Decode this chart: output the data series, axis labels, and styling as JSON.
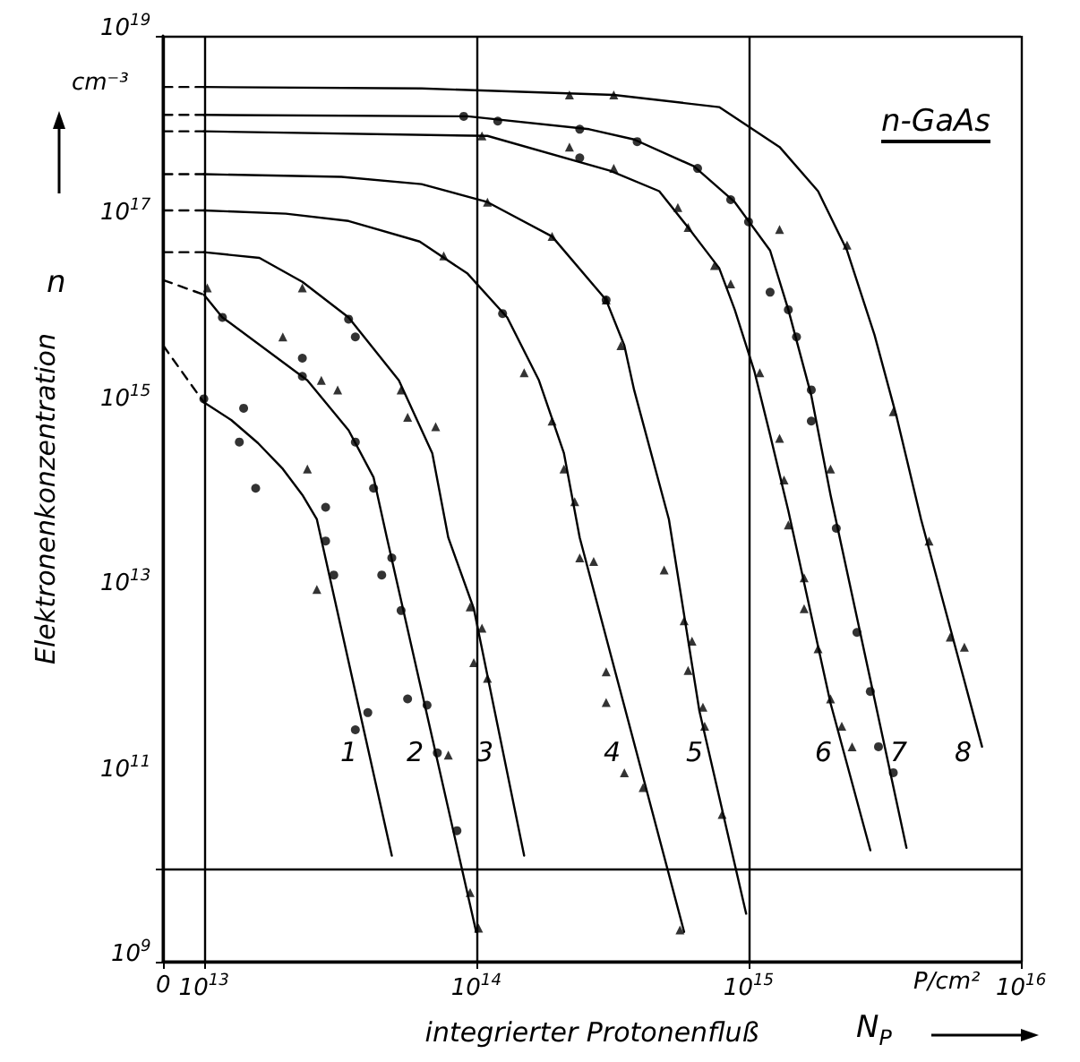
{
  "chart_data": {
    "type": "line",
    "xlabel": "integrierter Protonenfluß",
    "ylabel": "Elektronenkonzentration",
    "log": "xy",
    "grid": true,
    "marker": "none",
    "xlim": [
      0,
      1e+16
    ],
    "ylim": [
      1000000000.0,
      1e+19
    ],
    "xticks": [
      {
        "value": 0,
        "label": "0"
      },
      {
        "value": 10000000000000.0,
        "label": "10$^{13}$"
      },
      {
        "value": 100000000000000.0,
        "label": "10$^{14}$"
      },
      {
        "value": 1000000000000000.0,
        "label": "10$^{15}$"
      },
      {
        "value": 1e+16,
        "label": "10$^{16}$"
      }
    ],
    "yticks": [
      {
        "value": 1000000000.0,
        "label": "10$^{9}$"
      },
      {
        "value": 100000000000.0,
        "label": "10$^{11}$"
      },
      {
        "value": 10000000000000.0,
        "label": "10$^{13}$"
      },
      {
        "value": 1000000000000000.0,
        "label": "10$^{15}$"
      },
      {
        "value": 1e+17,
        "label": "10$^{17}$"
      },
      {
        "value": 1e+19,
        "label": "10$^{19}$"
      }
    ],
    "annotations": [
      "cm⁻³",
      "n-GaAs",
      "P/cm²",
      "n",
      "N$_{P}$",
      "1",
      "2",
      "3",
      "4",
      "5",
      "6",
      "7",
      "8"
    ],
    "series": [
      {
        "type": "line",
        "color": "#000000",
        "x": [
          10000000000000.0,
          12600000000000.0,
          15800000000000.0,
          19500000000000.0,
          23000000000000.0,
          26000000000000.0,
          49000000000000.0
        ],
        "values": [
          1100000000000000.0,
          710000000000000.0,
          400000000000000.0,
          210000000000000.0,
          110000000000000.0,
          60000000000000.0,
          14000000000.0
        ]
      },
      {
        "type": "line",
        "color": "#000000",
        "x": [
          10000000000000.0,
          11700000000000.0,
          24000000000000.0,
          34000000000000.0,
          42000000000000.0,
          47000000000000.0,
          100000000000000.0
        ],
        "values": [
          1.6e+16,
          9100000000000000.0,
          1900000000000000.0,
          550000000000000.0,
          170000000000000.0,
          38000000000000.0,
          2100000000.0
        ]
      },
      {
        "type": "line",
        "color": "#000000",
        "x": [
          10000000000000.0,
          16000000000000.0,
          23000000000000.0,
          34000000000000.0,
          52000000000000.0,
          69000000000000.0,
          79000000000000.0,
          98000000000000.0,
          150000000000000.0
        ],
        "values": [
          4.6e+16,
          4e+16,
          2.2e+16,
          9100000000000000.0,
          1900000000000000.0,
          310000000000000.0,
          38000000000000.0,
          6500000000000.0,
          14000000000.0
        ]
      },
      {
        "type": "line",
        "color": "#000000",
        "x": [
          10000000000000.0,
          20000000000000.0,
          34000000000000.0,
          62000000000000.0,
          93000000000000.0,
          130000000000000.0,
          170000000000000.0,
          210000000000000.0,
          240000000000000.0,
          580000000000000.0
        ],
        "values": [
          1.3e+17,
          1.2e+17,
          1e+17,
          6e+16,
          2.7e+16,
          9100000000000000.0,
          1900000000000000.0,
          310000000000000.0,
          38000000000000.0,
          2100000000.0
        ]
      },
      {
        "type": "line",
        "color": "#000000",
        "x": [
          10000000000000.0,
          32000000000000.0,
          63000000000000.0,
          110000000000000.0,
          190000000000000.0,
          300000000000000.0,
          350000000000000.0,
          380000000000000.0,
          510000000000000.0,
          660000000000000.0,
          980000000000000.0
        ],
        "values": [
          3.2e+17,
          3e+17,
          2.5e+17,
          1.6e+17,
          6.8e+16,
          1.4e+16,
          4500000000000000.0,
          1500000000000000.0,
          60000000000000.0,
          510000000000.0,
          3300000000.0
        ]
      },
      {
        "type": "line",
        "color": "#000000",
        "x": [
          10000000000000.0,
          110000000000000.0,
          310000000000000.0,
          470000000000000.0,
          600000000000000.0,
          780000000000000.0,
          890000000000000.0,
          1050000000000000.0,
          1200000000000000.0,
          1400000000000000.0,
          2000000000000000.0,
          2800000000000000.0
        ],
        "values": [
          9.3e+17,
          8.3e+17,
          3.5e+17,
          2.1e+17,
          8.5e+16,
          3.1e+16,
          1.1e+16,
          2400000000000000.0,
          490000000000000.0,
          74000000000000.0,
          620000000000.0,
          16000000000.0
        ]
      },
      {
        "type": "line",
        "color": "#000000",
        "x": [
          10000000000000.0,
          93000000000000.0,
          260000000000000.0,
          380000000000000.0,
          630000000000000.0,
          890000000000000.0,
          1200000000000000.0,
          1400000000000000.0,
          1700000000000000.0,
          2000000000000000.0,
          2900000000000000.0,
          3800000000000000.0
        ],
        "values": [
          1.4e+18,
          1.35e+18,
          9.8e+17,
          7.6e+17,
          3.9e+17,
          1.6e+17,
          4.8e+16,
          1.1e+16,
          1300000000000000.0,
          110000000000000.0,
          690000000000.0,
          17000000000.0
        ]
      },
      {
        "type": "line",
        "color": "#000000",
        "x": [
          10000000000000.0,
          63000000000000.0,
          320000000000000.0,
          780000000000000.0,
          1300000000000000.0,
          1800000000000000.0,
          2300000000000000.0,
          2900000000000000.0,
          3500000000000000.0,
          4300000000000000.0,
          7200000000000000.0
        ],
        "values": [
          2.8e+18,
          2.7e+18,
          2.3e+18,
          1.7e+18,
          6.3e+17,
          2.1e+17,
          4.8e+16,
          5900000000000000.0,
          760000000000000.0,
          60000000000000.0,
          210000000000.0
        ]
      },
      {
        "type": "line",
        "line_style": "dashed",
        "color": "#000000",
        "x": [
          7100000000000.0,
          10000000000000.0
        ],
        "values": [
          4500000000000000.0,
          1100000000000000.0
        ]
      },
      {
        "type": "line",
        "line_style": "dashed",
        "color": "#000000",
        "x": [
          7100000000000.0,
          10000000000000.0
        ],
        "values": [
          2.3e+16,
          1.6e+16
        ]
      },
      {
        "type": "line",
        "line_style": "dashed",
        "color": "#000000",
        "x": [
          7100000000000.0,
          10000000000000.0
        ],
        "values": [
          4.6e+16,
          4.6e+16
        ]
      },
      {
        "type": "line",
        "line_style": "dashed",
        "color": "#000000",
        "x": [
          7100000000000.0,
          10000000000000.0
        ],
        "values": [
          1.3e+17,
          1.3e+17
        ]
      },
      {
        "type": "line",
        "line_style": "dashed",
        "color": "#000000",
        "x": [
          7100000000000.0,
          10000000000000.0
        ],
        "values": [
          3.2e+17,
          3.2e+17
        ]
      },
      {
        "type": "line",
        "line_style": "dashed",
        "color": "#000000",
        "x": [
          7100000000000.0,
          10000000000000.0
        ],
        "values": [
          9.3e+17,
          9.3e+17
        ]
      },
      {
        "type": "line",
        "line_style": "dashed",
        "color": "#000000",
        "x": [
          7100000000000.0,
          10000000000000.0
        ],
        "values": [
          1.4e+18,
          1.4e+18
        ]
      },
      {
        "type": "line",
        "line_style": "dashed",
        "color": "#000000",
        "x": [
          7100000000000.0,
          10000000000000.0
        ],
        "values": [
          2.8e+18,
          2.8e+18
        ]
      },
      {
        "type": "scatter",
        "marker": "circle",
        "color": "#000000",
        "x": [
          10000000000000.0,
          11700000000000.0,
          14000000000000.0,
          13500000000000.0,
          15500000000000.0,
          23000000000000.0,
          23000000000000.0,
          36000000000000.0,
          36000000000000.0,
          42000000000000.0,
          28000000000000.0,
          28000000000000.0,
          30000000000000.0,
          36000000000000.0,
          40000000000000.0,
          49000000000000.0,
          45000000000000.0,
          53000000000000.0,
          56000000000000.0,
          66000000000000.0,
          72000000000000.0,
          85000000000000.0,
          34000000000000.0,
          125000000000000.0,
          90000000000000.0,
          120000000000000.0,
          240000000000000.0,
          240000000000000.0,
          390000000000000.0,
          650000000000000.0,
          860000000000000.0,
          1000000000000000.0,
          1200000000000000.0,
          1400000000000000.0,
          1500000000000000.0,
          1700000000000000.0,
          1700000000000000.0,
          2100000000000000.0,
          2500000000000000.0,
          2800000000000000.0,
          3400000000000000.0,
          3000000000000000.0,
          300000000000000.0
        ],
        "values": [
          1200000000000000.0,
          9100000000000000.0,
          950000000000000.0,
          410000000000000.0,
          130000000000000.0,
          3300000000000000.0,
          2100000000000000.0,
          5600000000000000.0,
          410000000000000.0,
          130000000000000.0,
          81000000000000.0,
          35000000000000.0,
          15000000000000.0,
          320000000000.0,
          490000000000.0,
          23000000000000.0,
          15000000000000.0,
          6200000000000.0,
          690000000000.0,
          590000000000.0,
          180000000000.0,
          26000000000.0,
          8700000000000000.0,
          1e+16,
          1.35e+18,
          1.2e+18,
          9.8e+17,
          4.8e+17,
          7.2e+17,
          3.7e+17,
          1.7e+17,
          9.8e+16,
          1.7e+16,
          1.1e+16,
          5600000000000000.0,
          1500000000000000.0,
          690000000000000.0,
          48000000000000.0,
          3600000000000.0,
          830000000000.0,
          110000000000.0,
          210000000000.0,
          1.4e+16
        ]
      },
      {
        "type": "scatter",
        "marker": "triangle",
        "color": "#000000",
        "x": [
          10300000000000.0,
          19500000000000.0,
          24000000000000.0,
          31000000000000.0,
          27000000000000.0,
          53000000000000.0,
          56000000000000.0,
          71000000000000.0,
          23000000000000.0,
          76000000000000.0,
          110000000000000.0,
          190000000000000.0,
          105000000000000.0,
          320000000000000.0,
          300000000000000.0,
          340000000000000.0,
          150000000000000.0,
          190000000000000.0,
          210000000000000.0,
          230000000000000.0,
          220000000000000.0,
          220000000000000.0,
          320000000000000.0,
          550000000000000.0,
          600000000000000.0,
          750000000000000.0,
          860000000000000.0,
          1100000000000000.0,
          1300000000000000.0,
          1300000000000000.0,
          1350000000000000.0,
          2300000000000000.0,
          2000000000000000.0,
          3400000000000000.0,
          26000000000000.0,
          79000000000000.0,
          95000000000000.0,
          105000000000000.0,
          110000000000000.0,
          98000000000000.0,
          95000000000000.0,
          102000000000000.0,
          240000000000000.0,
          270000000000000.0,
          300000000000000.0,
          300000000000000.0,
          350000000000000.0,
          410000000000000.0,
          560000000000000.0,
          490000000000000.0,
          580000000000000.0,
          620000000000000.0,
          600000000000000.0,
          680000000000000.0,
          690000000000000.0,
          800000000000000.0,
          1400000000000000.0,
          1600000000000000.0,
          1600000000000000.0,
          1800000000000000.0,
          2000000000000000.0,
          2200000000000000.0,
          2400000000000000.0,
          4600000000000000.0,
          5500000000000000.0,
          6200000000000000.0
        ],
        "values": [
          1.9e+16,
          5600000000000000.0,
          210000000000000.0,
          1500000000000000.0,
          1900000000000000.0,
          1500000000000000.0,
          760000000000000.0,
          600000000000000.0,
          1.9e+16,
          4.2e+16,
          1.6e+17,
          6.8e+16,
          8.3e+17,
          2.3e+18,
          1.4e+16,
          4500000000000000.0,
          2300000000000000.0,
          690000000000000.0,
          210000000000000.0,
          93000000000000.0,
          2.3e+18,
          6.3e+17,
          3.7e+17,
          1.4e+17,
          8.5e+16,
          3.3e+16,
          2.1e+16,
          2300000000000000.0,
          450000000000000.0,
          8.1e+16,
          160000000000000.0,
          5.5e+16,
          210000000000000.0,
          870000000000000.0,
          10500000000000.0,
          170000000000.0,
          6800000000000.0,
          4000000000000.0,
          1150000000000.0,
          1700000000000.0,
          5600000000.0,
          2300000000.0,
          23000000000000.0,
          21000000000000.0,
          1350000000000.0,
          630000000000.0,
          110000000000.0,
          76000000000.0,
          2200000000.0,
          17000000000000.0,
          4800000000000.0,
          2900000000000.0,
          1400000000000.0,
          560000000000.0,
          350000000000.0,
          39000000000.0,
          52000000000000.0,
          14000000000000.0,
          6500000000000.0,
          2400000000000.0,
          690000000000.0,
          350000000000.0,
          210000000000.0,
          35000000000000.0,
          3200000000000.0,
          2500000000000.0
        ]
      }
    ]
  }
}
